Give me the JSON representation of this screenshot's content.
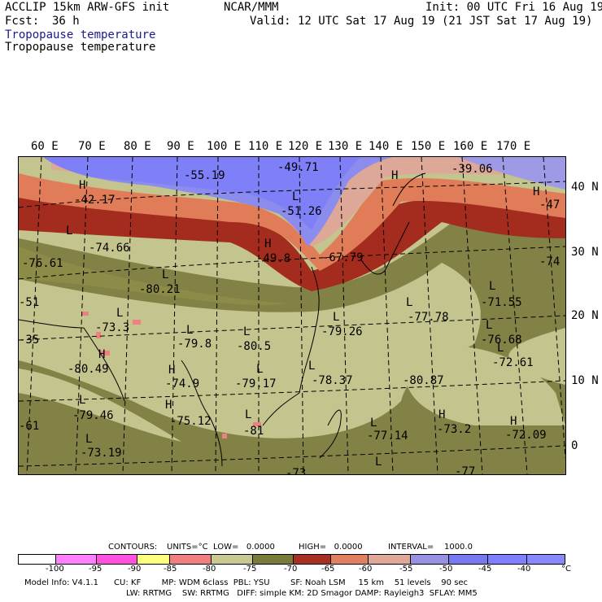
{
  "header": {
    "model": "ACCLIP 15km ARW-GFS init",
    "center": "NCAR/MMM",
    "init": "Init: 00 UTC Fri 16 Aug 19",
    "fcst_label": "Fcst:",
    "fcst_value": "36 h",
    "valid": "Valid: 12 UTC Sat 17 Aug 19 (21 JST Sat 17 Aug 19)",
    "field1": "Tropopause temperature",
    "field2": "Tropopause temperature"
  },
  "lon_labels": [
    "60 E",
    "70 E",
    "80 E",
    "90 E",
    "100 E",
    "110 E",
    "120 E",
    "130 E",
    "140 E",
    "150 E",
    "160 E",
    "170 E"
  ],
  "lat_labels": [
    "40 N",
    "30 N",
    "20 N",
    "10 N",
    "0"
  ],
  "map_labels": {
    "values": [
      "-55.19",
      "-49.71",
      "-39.06",
      "-42.17",
      "-51.26",
      "-47",
      "-74.66",
      "-49.8",
      "-67.79",
      "-76.61",
      "-74",
      "-80.21",
      "-71.55",
      "-77.78",
      "-79.26",
      "-73.3",
      "-76.68",
      "-79.8",
      "-80.5",
      "-80.49",
      "-72.61",
      "-74.9",
      "-79.17",
      "-78.37",
      "-80.87",
      "-79.46",
      "-75.12",
      "-81",
      "-77.14",
      "-73.2",
      "-72.09",
      "-73.19",
      "-51",
      "-35",
      "-61",
      "-77",
      "-73"
    ],
    "symbols": [
      "H",
      "L",
      "H",
      "H",
      "H",
      "L",
      "L",
      "L",
      "L",
      "L",
      "L",
      "L",
      "H",
      "L",
      "L",
      "L",
      "L",
      "H",
      "L",
      "H",
      "L",
      "H",
      "L",
      "L",
      "L",
      "H",
      "L"
    ]
  },
  "contour_info": {
    "contours_label": "CONTOURS:",
    "units": "UNITS=°C",
    "low": "LOW=   0.0000",
    "high": "HIGH=   0.0000",
    "interval": "INTERVAL=    1000.0"
  },
  "legend": {
    "colors": [
      "#ffffff",
      "#ff80ff",
      "#ff50e0",
      "#ffff80",
      "#f08080",
      "#c8c890",
      "#7a7a3a",
      "#a83020",
      "#e08060",
      "#e0a898",
      "#9890e0",
      "#7878f0",
      "#8080ff",
      "#8888ff"
    ],
    "ticks": [
      "-100",
      "-95",
      "-90",
      "-85",
      "-80",
      "-75",
      "-70",
      "-65",
      "-60",
      "-55",
      "-50",
      "-45",
      "-40"
    ],
    "unit": "°C"
  },
  "model_info": {
    "line1": "Model Info: V4.1.1      CU: KF        MP: WDM 6class  PBL: YSU        SF: Noah LSM     15 km    51 levels    90 sec",
    "line2": "LW: RRTMG    SW: RRTMG   DIFF: simple KM: 2D Smagor DAMP: Rayleigh3  SFLAY: MM5"
  }
}
